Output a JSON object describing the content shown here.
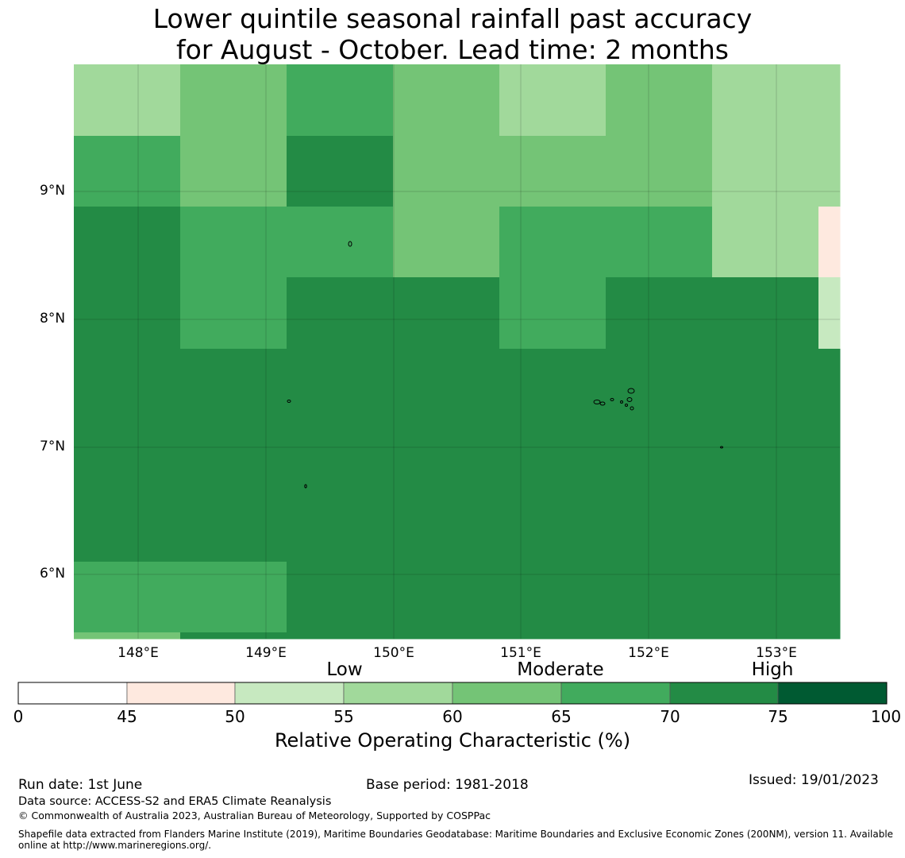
{
  "title": {
    "line1": "Lower quintile seasonal rainfall past accuracy",
    "line2": "for August - October. Lead time: 2 months"
  },
  "map": {
    "y_axis_labels": [
      "9°N",
      "8°N",
      "7°N",
      "6°N"
    ],
    "x_axis_labels": [
      "148°E",
      "149°E",
      "150°E",
      "151°E",
      "152°E",
      "153°E"
    ],
    "lat_range": [
      5.5,
      10.0
    ],
    "lon_range": [
      147.5,
      153.5
    ],
    "cell_rows_north_to_south": [
      [
        3,
        4,
        5,
        4,
        3,
        4,
        3,
        3
      ],
      [
        5,
        4,
        6,
        4,
        4,
        4,
        3,
        3
      ],
      [
        6,
        5,
        5,
        4,
        5,
        5,
        3,
        1
      ],
      [
        6,
        5,
        6,
        6,
        5,
        6,
        6,
        2
      ],
      [
        6,
        6,
        6,
        6,
        6,
        6,
        6,
        6
      ],
      [
        6,
        6,
        6,
        6,
        6,
        6,
        6,
        6
      ],
      [
        6,
        6,
        6,
        6,
        6,
        6,
        6,
        6
      ],
      [
        5,
        5,
        6,
        6,
        6,
        6,
        6,
        6
      ],
      [
        4,
        6,
        6,
        6,
        6,
        6,
        6,
        6
      ]
    ]
  },
  "colorbar": {
    "category_labels": {
      "low": "Low",
      "moderate": "Moderate",
      "high": "High"
    },
    "tick_labels": [
      "0",
      "45",
      "50",
      "55",
      "60",
      "65",
      "70",
      "75",
      "100"
    ],
    "bins": [
      {
        "range": "0-45",
        "color": "#ffffff"
      },
      {
        "range": "45-50",
        "color": "#fee9df"
      },
      {
        "range": "50-55",
        "color": "#c7e9c0"
      },
      {
        "range": "55-60",
        "color": "#a1d99b"
      },
      {
        "range": "60-65",
        "color": "#74c476"
      },
      {
        "range": "65-70",
        "color": "#41ab5d"
      },
      {
        "range": "70-75",
        "color": "#238b45"
      },
      {
        "range": "75-100",
        "color": "#005a32"
      }
    ],
    "label": "Relative Operating Characteristic (%)"
  },
  "footer": {
    "run_date": "Run date: 1st June",
    "base_period": "Base period: 1981-2018",
    "issued": "Issued: 19/01/2023",
    "data_source": "Data source: ACCESS-S2 and ERA5 Climate Reanalysis",
    "copyright": "© Commonwealth of Australia 2023, Australian Bureau of Meteorology, Supported by COSPPac",
    "shapefile_line1": "Shapefile data extracted from Flanders Marine Institute (2019), Maritime Boundaries Geodatabase: Maritime Boundaries and Exclusive Economic Zones (200NM), version 11. Available",
    "shapefile_line2": "online at http://www.marineregions.org/."
  }
}
